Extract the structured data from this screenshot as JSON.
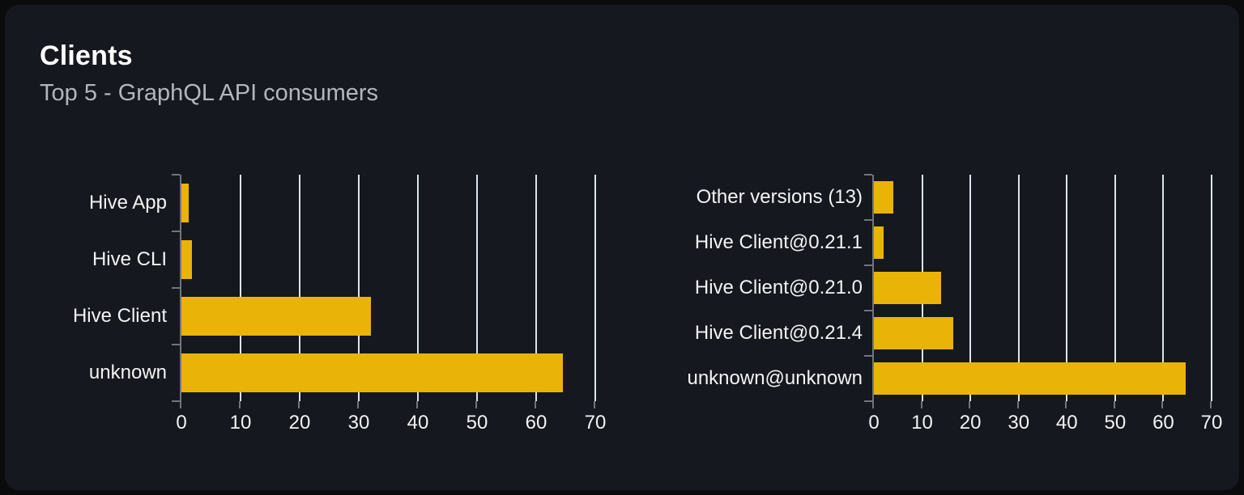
{
  "card": {
    "title": "Clients",
    "subtitle": "Top 5 - GraphQL API consumers"
  },
  "colors": {
    "page_bg": "#0a0b0d",
    "card_bg": "#15181e",
    "bar": "#eab308",
    "grid": "#dde4ee",
    "axis": "#70757e",
    "label": "#f2f3f4",
    "title": "#ffffff",
    "subtitle": "#b2b7bd"
  },
  "chart_data": [
    {
      "type": "bar",
      "orientation": "horizontal",
      "name": "clients-by-name",
      "title": "",
      "categories": [
        "Hive App",
        "Hive CLI",
        "Hive Client",
        "unknown"
      ],
      "values": [
        1.2,
        1.8,
        32,
        64.5
      ],
      "xlim": [
        0,
        70
      ],
      "xticks": [
        0,
        10,
        20,
        30,
        40,
        50,
        60,
        70
      ],
      "grid": true,
      "legend": false
    },
    {
      "type": "bar",
      "orientation": "horizontal",
      "name": "clients-by-version",
      "title": "",
      "categories": [
        "Other versions (13)",
        "Hive Client@0.21.1",
        "Hive Client@0.21.0",
        "Hive Client@0.21.4",
        "unknown@unknown"
      ],
      "values": [
        4,
        2,
        14,
        16.5,
        64.6
      ],
      "xlim": [
        0,
        70
      ],
      "xticks": [
        0,
        10,
        20,
        30,
        40,
        50,
        60,
        70
      ],
      "grid": true,
      "legend": false
    }
  ]
}
